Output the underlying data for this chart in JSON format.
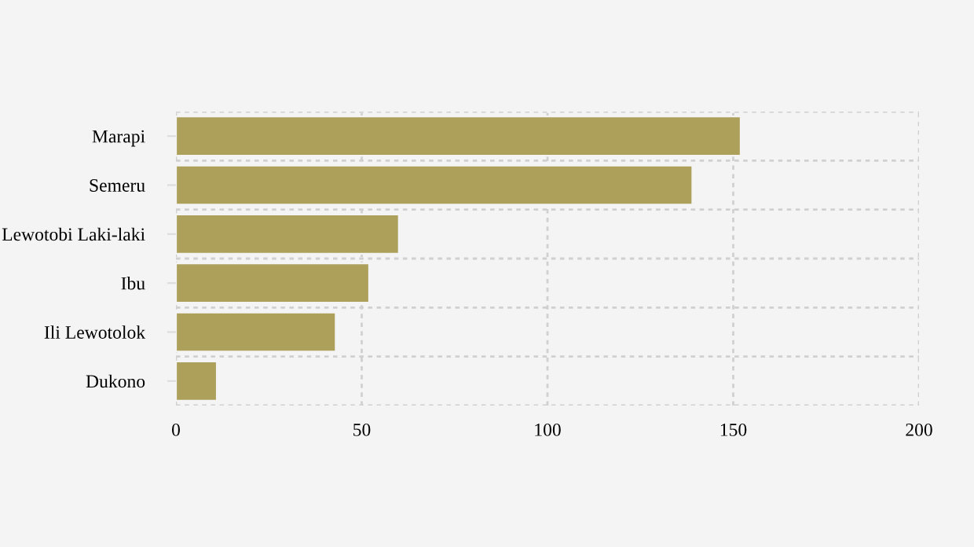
{
  "chart_data": {
    "type": "bar",
    "orientation": "horizontal",
    "categories": [
      "Marapi",
      "Semeru",
      "Lewotobi Laki-laki",
      "Ibu",
      "Ili Lewotolok",
      "Dukono"
    ],
    "values": [
      152,
      139,
      60,
      52,
      43,
      11
    ],
    "color": "#ada05b",
    "xlim": [
      0,
      200
    ],
    "xticks": [
      0,
      50,
      100,
      150,
      200
    ],
    "grid": true
  }
}
